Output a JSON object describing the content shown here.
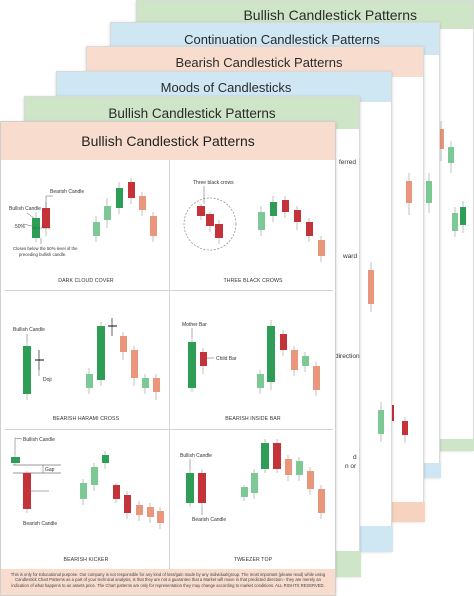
{
  "sheets": [
    {
      "title": "Bullish Candlestick Patterns",
      "color": "#cfe5c8"
    },
    {
      "title": "Continuation Candlestick Patterns",
      "color": "#cfe6f3"
    },
    {
      "title": "Bearish Candlestick Patterns",
      "color": "#f8ddcf"
    },
    {
      "title": "Moods of Candlesticks",
      "color": "#cfe6f3"
    },
    {
      "title": "Bullish Candlestick Patterns",
      "color": "#cfe5c8"
    }
  ],
  "front": {
    "title": "Bullish Candlestick Patterns",
    "panels": {
      "dark_cloud_cover": {
        "caption": "DARK CLOUD COVER",
        "bearish_candle": "Bearish Candle",
        "bullish_candle": "Bullish Candle",
        "fifty_percent": "50%",
        "closes_line1": "Closes below the 50% level of the",
        "closes_line2": "preceding bullish candle."
      },
      "three_black_crows": {
        "caption": "THREE BLACK CROWS",
        "label": "Three black crows"
      },
      "bearish_harami_cross": {
        "caption": "BEARISH HARAMI CROSS",
        "bullish_candle": "Bullish Candle",
        "doji": "Doji"
      },
      "bearish_inside_bar": {
        "caption": "BEARISH INSIDE BAR",
        "mother_bar": "Mother Bar",
        "child_bar": "Child Bar"
      },
      "bearish_kicker": {
        "caption": "BEARISH KICKER",
        "bullish_candle": "Bullish Candle",
        "gap": "Gap",
        "bearish_candle": "Bearish Candle"
      },
      "tweezer_top": {
        "caption": "TWEEZER TOP",
        "bullish_candle": "Bullish Candle",
        "bearish_candle": "Bearish Candle"
      }
    },
    "disclaimer": "This is only for Educational purpose. Our company is not responsible for any kind of loss/gain made by any individual/group. The most important (please read) while using Candlestick Chart Patterns as a part of your technical analysis, is that they are not a guarantee that a Market will move in that predicted direction - they are merely an indication of what happens to an assets price. The Chart patterns are only for representation they may change according to market conditions. ALL RIGHTS RESERVED."
  },
  "side_fragments": {
    "ferred": "ferred",
    "ward": "ward",
    "direction": "direction",
    "d": "d",
    "n_or": "n or"
  },
  "colors": {
    "bullish": "#2e9d55",
    "bullish_light": "#7cc995",
    "bearish": "#c4323a",
    "bearish_light": "#e9967c",
    "gray": "#999999"
  }
}
